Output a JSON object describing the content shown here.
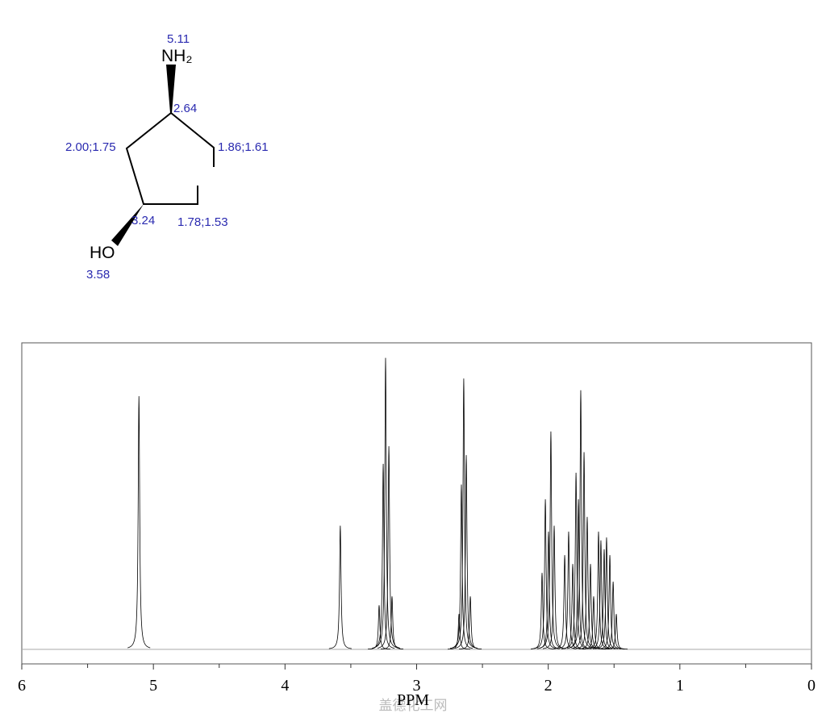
{
  "molecule": {
    "atom_labels": [
      "NH₂",
      "HO"
    ],
    "shift_labels": [
      "5.11",
      "2.64",
      "2.00;1.75",
      "1.86;1.61",
      "3.24",
      "1.78;1.53",
      "3.58"
    ]
  },
  "watermark": "盖德化工网",
  "chart_data": {
    "type": "spectrum",
    "xlabel": "PPM",
    "color": "#000000",
    "x": [
      5.11,
      3.58,
      3.285,
      3.254,
      3.236,
      3.211,
      3.187,
      2.678,
      2.66,
      2.642,
      2.623,
      2.592,
      2.047,
      2.022,
      1.998,
      1.98,
      1.955,
      1.875,
      1.845,
      1.814,
      1.789,
      1.771,
      1.753,
      1.728,
      1.704,
      1.679,
      1.655,
      1.618,
      1.6,
      1.575,
      1.557,
      1.532,
      1.507,
      1.483
    ],
    "values": [
      86,
      42,
      15,
      63,
      99,
      69,
      18,
      12,
      56,
      92,
      66,
      18,
      26,
      51,
      40,
      74,
      42,
      32,
      40,
      29,
      60,
      51,
      88,
      67,
      45,
      29,
      18,
      40,
      37,
      34,
      38,
      32,
      23,
      12
    ],
    "xlim": [
      6,
      0
    ],
    "xticks": [
      6,
      5,
      4,
      3,
      2,
      1,
      0
    ],
    "xminor_ticks": [
      5.5,
      4.5,
      3.5,
      2.5,
      1.5,
      0.5
    ],
    "ylim": [
      0,
      100
    ]
  }
}
